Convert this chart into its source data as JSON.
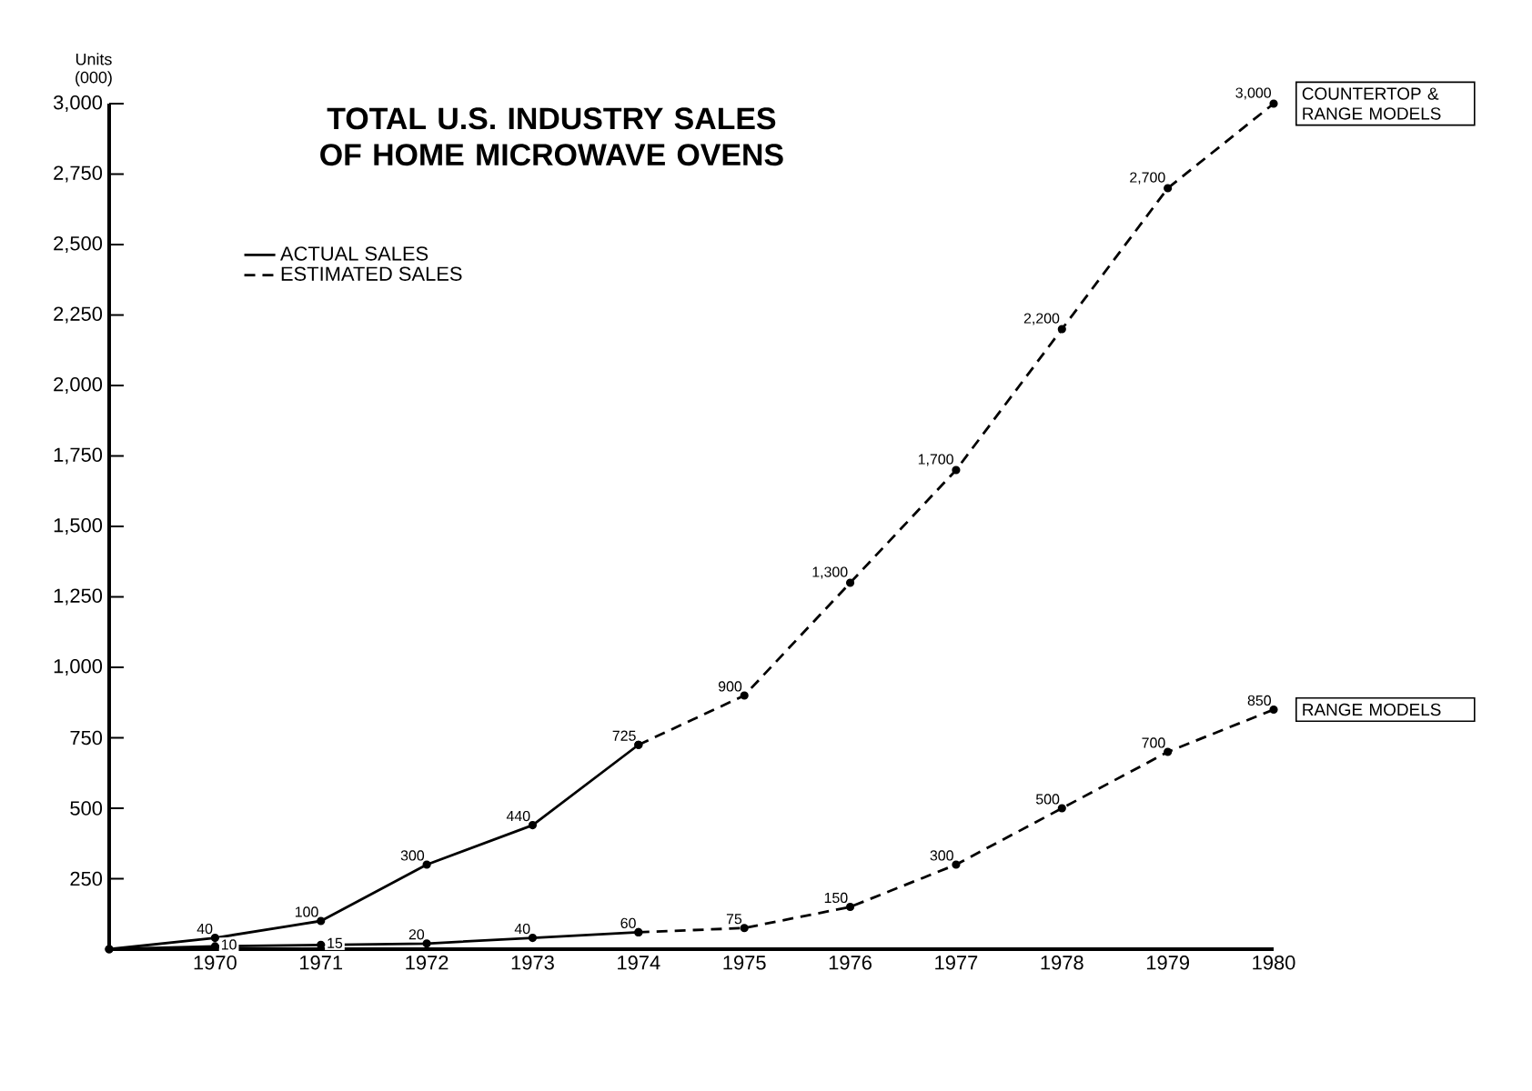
{
  "chart_data": {
    "type": "line",
    "title": "TOTAL U.S. INDUSTRY SALES OF HOME MICROWAVE OVENS",
    "ylabel": "Units (000)",
    "xlim": [
      1969,
      1980
    ],
    "xticks": [
      1970,
      1971,
      1972,
      1973,
      1974,
      1975,
      1976,
      1977,
      1978,
      1979,
      1980
    ],
    "ylim": [
      0,
      3000
    ],
    "yticks": [
      {
        "value": 250,
        "label": "250"
      },
      {
        "value": 500,
        "label": "500"
      },
      {
        "value": 750,
        "label": "750"
      },
      {
        "value": 1000,
        "label": "1,000"
      },
      {
        "value": 1250,
        "label": "1,250"
      },
      {
        "value": 1500,
        "label": "1,500"
      },
      {
        "value": 1750,
        "label": "1,750"
      },
      {
        "value": 2000,
        "label": "2,000"
      },
      {
        "value": 2250,
        "label": "2,250"
      },
      {
        "value": 2500,
        "label": "2,500"
      },
      {
        "value": 2750,
        "label": "2,750"
      },
      {
        "value": 3000,
        "label": "3,000"
      }
    ],
    "series": [
      {
        "name": "ACTUAL SALES",
        "color": "#000000",
        "line_style": "solid",
        "x": [
          1969,
          1970,
          1971,
          1972,
          1973,
          1974
        ],
        "values": [
          0,
          40,
          100,
          300,
          440,
          725
        ],
        "value_labels": [
          null,
          "40",
          "100",
          "300",
          "440",
          "725"
        ]
      },
      {
        "name": "ESTIMATED SALES",
        "color": "#000000",
        "line_style": "dashed",
        "x": [
          1974,
          1975,
          1976,
          1977,
          1978,
          1979,
          1980
        ],
        "values": [
          725,
          900,
          1300,
          1700,
          2200,
          2700,
          3000
        ],
        "value_labels": [
          null,
          "900",
          "1,300",
          "1,700",
          "2,200",
          "2,700",
          "3,000"
        ]
      },
      {
        "color": "#000000",
        "line_style": "solid",
        "x": [
          1969,
          1970,
          1971,
          1972,
          1973,
          1974
        ],
        "values": [
          0,
          10,
          15,
          20,
          40,
          60
        ],
        "value_labels": [
          null,
          "10",
          "15",
          "20",
          "40",
          "60"
        ]
      },
      {
        "color": "#000000",
        "line_style": "dashed",
        "x": [
          1974,
          1975,
          1976,
          1977,
          1978,
          1979,
          1980
        ],
        "values": [
          60,
          75,
          150,
          300,
          500,
          700,
          850
        ],
        "value_labels": [
          null,
          "75",
          "150",
          "300",
          "500",
          "700",
          "850"
        ]
      }
    ],
    "annotations": [
      {
        "text": "COUNTERTOP & RANGE MODELS",
        "x": 1980,
        "y": 3000
      },
      {
        "text": "RANGE MODELS",
        "x": 1980,
        "y": 850
      }
    ],
    "marker": "circle",
    "legend": "top left",
    "grid": false
  }
}
